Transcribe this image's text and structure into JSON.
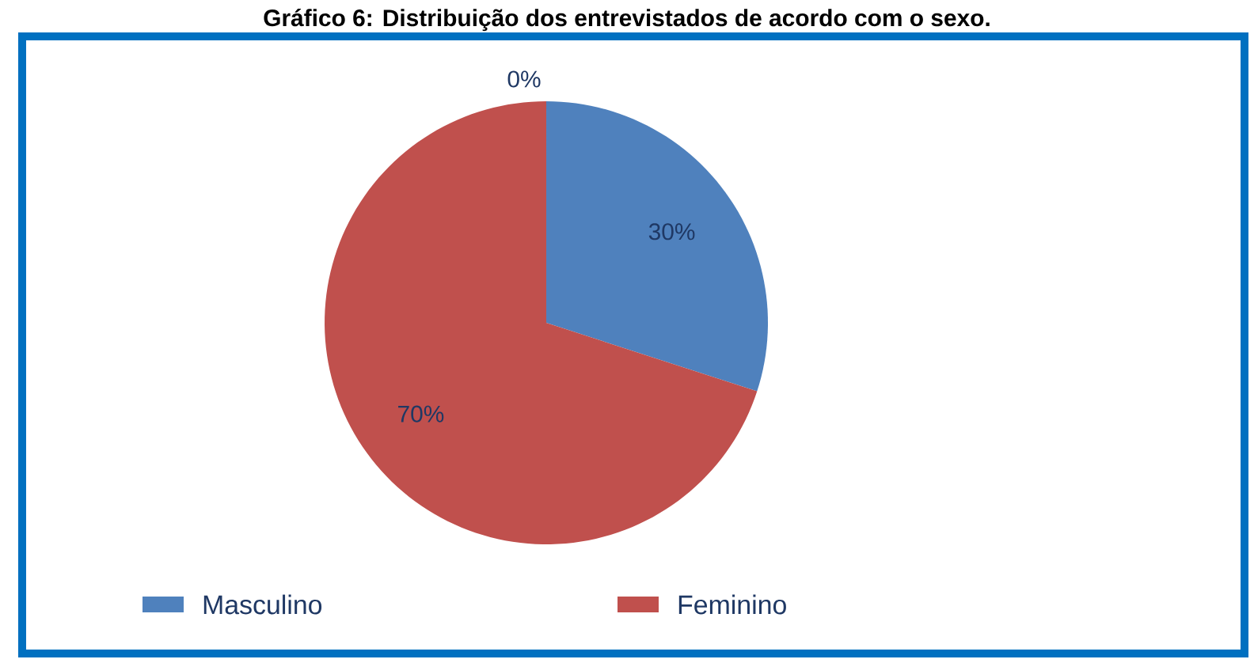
{
  "chart_data": {
    "type": "pie",
    "title": "Gráfico 6: Distribuição dos entrevistados de acordo com o sexo.",
    "categories": [
      null,
      "Masculino",
      "Feminino"
    ],
    "values": [
      0,
      30,
      70
    ],
    "colors": [
      "#4f81bd",
      "#4f81bd",
      "#c0504d"
    ],
    "value_labels": [
      "0%",
      "30%",
      "70%"
    ],
    "legend": "bottom"
  }
}
